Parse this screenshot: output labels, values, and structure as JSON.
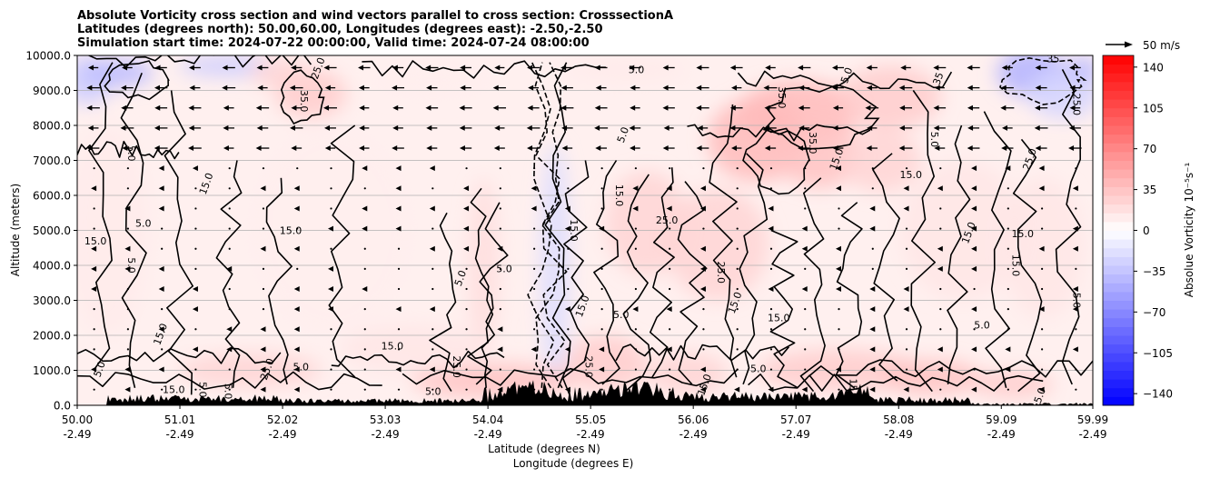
{
  "chart_data": {
    "type": "heatmap",
    "title_lines": [
      "Absolute Vorticity cross section and wind vectors parallel to cross section: CrosssectionA",
      "Latitudes (degrees north): 50.00,60.00, Longitudes (degrees east): -2.50,-2.50",
      "Simulation start time: 2024-07-22 00:00:00, Valid time: 2024-07-24 08:00:00"
    ],
    "ylabel": "Altitude (meters)",
    "xlabel_lines": [
      "Latitude (degrees N)",
      "Longitude (degrees E)"
    ],
    "xlim": [
      50.0,
      59.99
    ],
    "ylim": [
      0,
      10000
    ],
    "x_ticks": [
      {
        "value": 50.0,
        "lat": "50.00",
        "lon": "-2.49"
      },
      {
        "value": 51.01,
        "lat": "51.01",
        "lon": "-2.49"
      },
      {
        "value": 52.02,
        "lat": "52.02",
        "lon": "-2.49"
      },
      {
        "value": 53.03,
        "lat": "53.03",
        "lon": "-2.49"
      },
      {
        "value": 54.04,
        "lat": "54.04",
        "lon": "-2.49"
      },
      {
        "value": 55.05,
        "lat": "55.05",
        "lon": "-2.49"
      },
      {
        "value": 56.06,
        "lat": "56.06",
        "lon": "-2.49"
      },
      {
        "value": 57.07,
        "lat": "57.07",
        "lon": "-2.49"
      },
      {
        "value": 58.08,
        "lat": "58.08",
        "lon": "-2.49"
      },
      {
        "value": 59.09,
        "lat": "59.09",
        "lon": "-2.49"
      },
      {
        "value": 59.99,
        "lat": "59.99",
        "lon": "-2.49"
      }
    ],
    "y_ticks": [
      {
        "value": 0,
        "label": "0.0"
      },
      {
        "value": 1000,
        "label": "1000.0"
      },
      {
        "value": 2000,
        "label": "2000.0"
      },
      {
        "value": 3000,
        "label": "3000.0"
      },
      {
        "value": 4000,
        "label": "4000.0"
      },
      {
        "value": 5000,
        "label": "5000.0"
      },
      {
        "value": 6000,
        "label": "6000.0"
      },
      {
        "value": 7000,
        "label": "7000.0"
      },
      {
        "value": 8000,
        "label": "8000.0"
      },
      {
        "value": 9000,
        "label": "9000.0"
      },
      {
        "value": 10000,
        "label": "10000.0"
      }
    ],
    "grid": "horizontal",
    "colorbar": {
      "label": "Absolue Vorticity 10⁻⁵s⁻¹",
      "range": [
        -150,
        150
      ],
      "ticks": [
        {
          "value": 140,
          "label": "140"
        },
        {
          "value": 105,
          "label": "105"
        },
        {
          "value": 70,
          "label": "70"
        },
        {
          "value": 35,
          "label": "35"
        },
        {
          "value": 0,
          "label": "0"
        },
        {
          "value": -35,
          "label": "−35"
        },
        {
          "value": -70,
          "label": "−70"
        },
        {
          "value": -105,
          "label": "−105"
        },
        {
          "value": -140,
          "label": "−140"
        }
      ],
      "colors": {
        "low": "#0000ff",
        "mid": "#ffffff",
        "high": "#ff0000"
      }
    },
    "quiver_key": {
      "label": "50 m/s",
      "speed": 50
    },
    "vorticity_patches": [
      {
        "x": 50.1,
        "y": 9300,
        "rx": 0.25,
        "ry": 700,
        "value": -30
      },
      {
        "x": 50.4,
        "y": 9500,
        "rx": 0.35,
        "ry": 400,
        "value": -40
      },
      {
        "x": 51.5,
        "y": 9700,
        "rx": 0.5,
        "ry": 300,
        "value": -30
      },
      {
        "x": 52.3,
        "y": 8900,
        "rx": 0.35,
        "ry": 700,
        "value": 30
      },
      {
        "x": 52.0,
        "y": 9500,
        "rx": 0.3,
        "ry": 400,
        "value": 25
      },
      {
        "x": 53.5,
        "y": 9300,
        "rx": 0.6,
        "ry": 500,
        "value": 10
      },
      {
        "x": 55.4,
        "y": 9600,
        "rx": 0.6,
        "ry": 400,
        "value": 12
      },
      {
        "x": 56.7,
        "y": 7600,
        "rx": 0.5,
        "ry": 1200,
        "value": 40
      },
      {
        "x": 57.1,
        "y": 8400,
        "rx": 0.6,
        "ry": 900,
        "value": 40
      },
      {
        "x": 57.3,
        "y": 7200,
        "rx": 0.4,
        "ry": 1000,
        "value": 35
      },
      {
        "x": 58.0,
        "y": 8800,
        "rx": 0.5,
        "ry": 900,
        "value": 30
      },
      {
        "x": 57.9,
        "y": 7000,
        "rx": 0.4,
        "ry": 900,
        "value": 25
      },
      {
        "x": 59.4,
        "y": 9500,
        "rx": 0.35,
        "ry": 700,
        "value": -45
      },
      {
        "x": 59.7,
        "y": 8900,
        "rx": 0.35,
        "ry": 700,
        "value": -25
      },
      {
        "x": 59.9,
        "y": 9600,
        "rx": 0.15,
        "ry": 400,
        "value": -40
      },
      {
        "x": 54.7,
        "y": 4000,
        "rx": 0.15,
        "ry": 3500,
        "value": -20
      },
      {
        "x": 55.6,
        "y": 5200,
        "rx": 0.4,
        "ry": 1500,
        "value": 25
      },
      {
        "x": 56.3,
        "y": 4600,
        "rx": 0.5,
        "ry": 1600,
        "value": 25
      },
      {
        "x": 54.0,
        "y": 4000,
        "rx": 0.15,
        "ry": 2500,
        "value": 20
      },
      {
        "x": 57.5,
        "y": 1000,
        "rx": 0.8,
        "ry": 600,
        "value": 30
      },
      {
        "x": 58.4,
        "y": 800,
        "rx": 0.5,
        "ry": 500,
        "value": 35
      },
      {
        "x": 51.7,
        "y": 1000,
        "rx": 0.7,
        "ry": 500,
        "value": 25
      },
      {
        "x": 54.1,
        "y": 700,
        "rx": 0.8,
        "ry": 500,
        "value": 35
      },
      {
        "x": 55.2,
        "y": 1200,
        "rx": 0.4,
        "ry": 800,
        "value": 30
      },
      {
        "x": 56.0,
        "y": 900,
        "rx": 0.4,
        "ry": 600,
        "value": 25
      },
      {
        "x": 59.2,
        "y": 600,
        "rx": 0.4,
        "ry": 400,
        "value": 30
      },
      {
        "x": 58.7,
        "y": 5000,
        "rx": 0.6,
        "ry": 2000,
        "value": 15
      },
      {
        "x": 59.5,
        "y": 4500,
        "rx": 0.4,
        "ry": 2000,
        "value": 15
      },
      {
        "x": 50.3,
        "y": 5000,
        "rx": 0.4,
        "ry": 3000,
        "value": 12
      },
      {
        "x": 52.5,
        "y": 5000,
        "rx": 0.8,
        "ry": 3000,
        "value": 10
      },
      {
        "x": 53.3,
        "y": 1600,
        "rx": 0.7,
        "ry": 700,
        "value": 15
      }
    ],
    "contour_labels": [
      {
        "x": 50.65,
        "y": 5100,
        "text": "5.0"
      },
      {
        "x": 50.5,
        "y": 4000,
        "text": "5.0"
      },
      {
        "x": 50.85,
        "y": 2000,
        "text": "15.0"
      },
      {
        "x": 50.18,
        "y": 4600,
        "text": "15.0"
      },
      {
        "x": 50.5,
        "y": 7200,
        "text": "5.0"
      },
      {
        "x": 51.3,
        "y": 6300,
        "text": "15.0"
      },
      {
        "x": 52.1,
        "y": 4900,
        "text": "15.0"
      },
      {
        "x": 52.2,
        "y": 8700,
        "text": "35.0"
      },
      {
        "x": 52.4,
        "y": 9600,
        "text": "25.0"
      },
      {
        "x": 53.1,
        "y": 1600,
        "text": "15.0"
      },
      {
        "x": 53.7,
        "y": 1100,
        "text": "25.0"
      },
      {
        "x": 53.8,
        "y": 3600,
        "text": "5.0"
      },
      {
        "x": 54.2,
        "y": 3800,
        "text": "5.0"
      },
      {
        "x": 54.85,
        "y": 5000,
        "text": "15.0"
      },
      {
        "x": 55.0,
        "y": 2800,
        "text": "15.0"
      },
      {
        "x": 55.35,
        "y": 2500,
        "text": "5.0"
      },
      {
        "x": 55.3,
        "y": 6000,
        "text": "15.0"
      },
      {
        "x": 55.4,
        "y": 7700,
        "text": "5.0"
      },
      {
        "x": 55.8,
        "y": 5200,
        "text": "25.0"
      },
      {
        "x": 56.3,
        "y": 3800,
        "text": "25.0"
      },
      {
        "x": 56.5,
        "y": 2900,
        "text": "15.0"
      },
      {
        "x": 56.9,
        "y": 2400,
        "text": "15.0"
      },
      {
        "x": 57.2,
        "y": 7500,
        "text": "35.0"
      },
      {
        "x": 57.5,
        "y": 7000,
        "text": "15.0"
      },
      {
        "x": 58.2,
        "y": 6500,
        "text": "15.0"
      },
      {
        "x": 58.4,
        "y": 7600,
        "text": "5.0"
      },
      {
        "x": 58.8,
        "y": 4900,
        "text": "15.0"
      },
      {
        "x": 59.3,
        "y": 4800,
        "text": "15.0"
      },
      {
        "x": 59.2,
        "y": 4000,
        "text": "15.0"
      },
      {
        "x": 59.4,
        "y": 7000,
        "text": "25.0"
      },
      {
        "x": 59.6,
        "y": 9800,
        "text": "35"
      },
      {
        "x": 59.8,
        "y": 8600,
        "text": "25.0"
      },
      {
        "x": 57.6,
        "y": 9400,
        "text": "5.0"
      },
      {
        "x": 55.5,
        "y": 9500,
        "text": "5.0"
      },
      {
        "x": 56.9,
        "y": 8800,
        "text": "35.0"
      },
      {
        "x": 58.5,
        "y": 9300,
        "text": "35"
      },
      {
        "x": 56.7,
        "y": 950,
        "text": "5.0"
      },
      {
        "x": 57.6,
        "y": 450,
        "text": "15.0"
      },
      {
        "x": 56.2,
        "y": 550,
        "text": "15.0"
      },
      {
        "x": 53.5,
        "y": 300,
        "text": "5.0"
      },
      {
        "x": 51.2,
        "y": 450,
        "text": "5.0"
      },
      {
        "x": 50.25,
        "y": 1000,
        "text": "5.0"
      },
      {
        "x": 50.95,
        "y": 350,
        "text": "15.0"
      },
      {
        "x": 51.45,
        "y": 400,
        "text": "5.0"
      },
      {
        "x": 51.9,
        "y": 1000,
        "text": "25.0"
      },
      {
        "x": 52.2,
        "y": 1000,
        "text": "5.0"
      },
      {
        "x": 55.0,
        "y": 1100,
        "text": "25.0"
      },
      {
        "x": 59.5,
        "y": 250,
        "text": "5.0"
      },
      {
        "x": 58.9,
        "y": 2200,
        "text": "5.0"
      },
      {
        "x": 59.8,
        "y": 3000,
        "text": "5.0"
      }
    ]
  }
}
